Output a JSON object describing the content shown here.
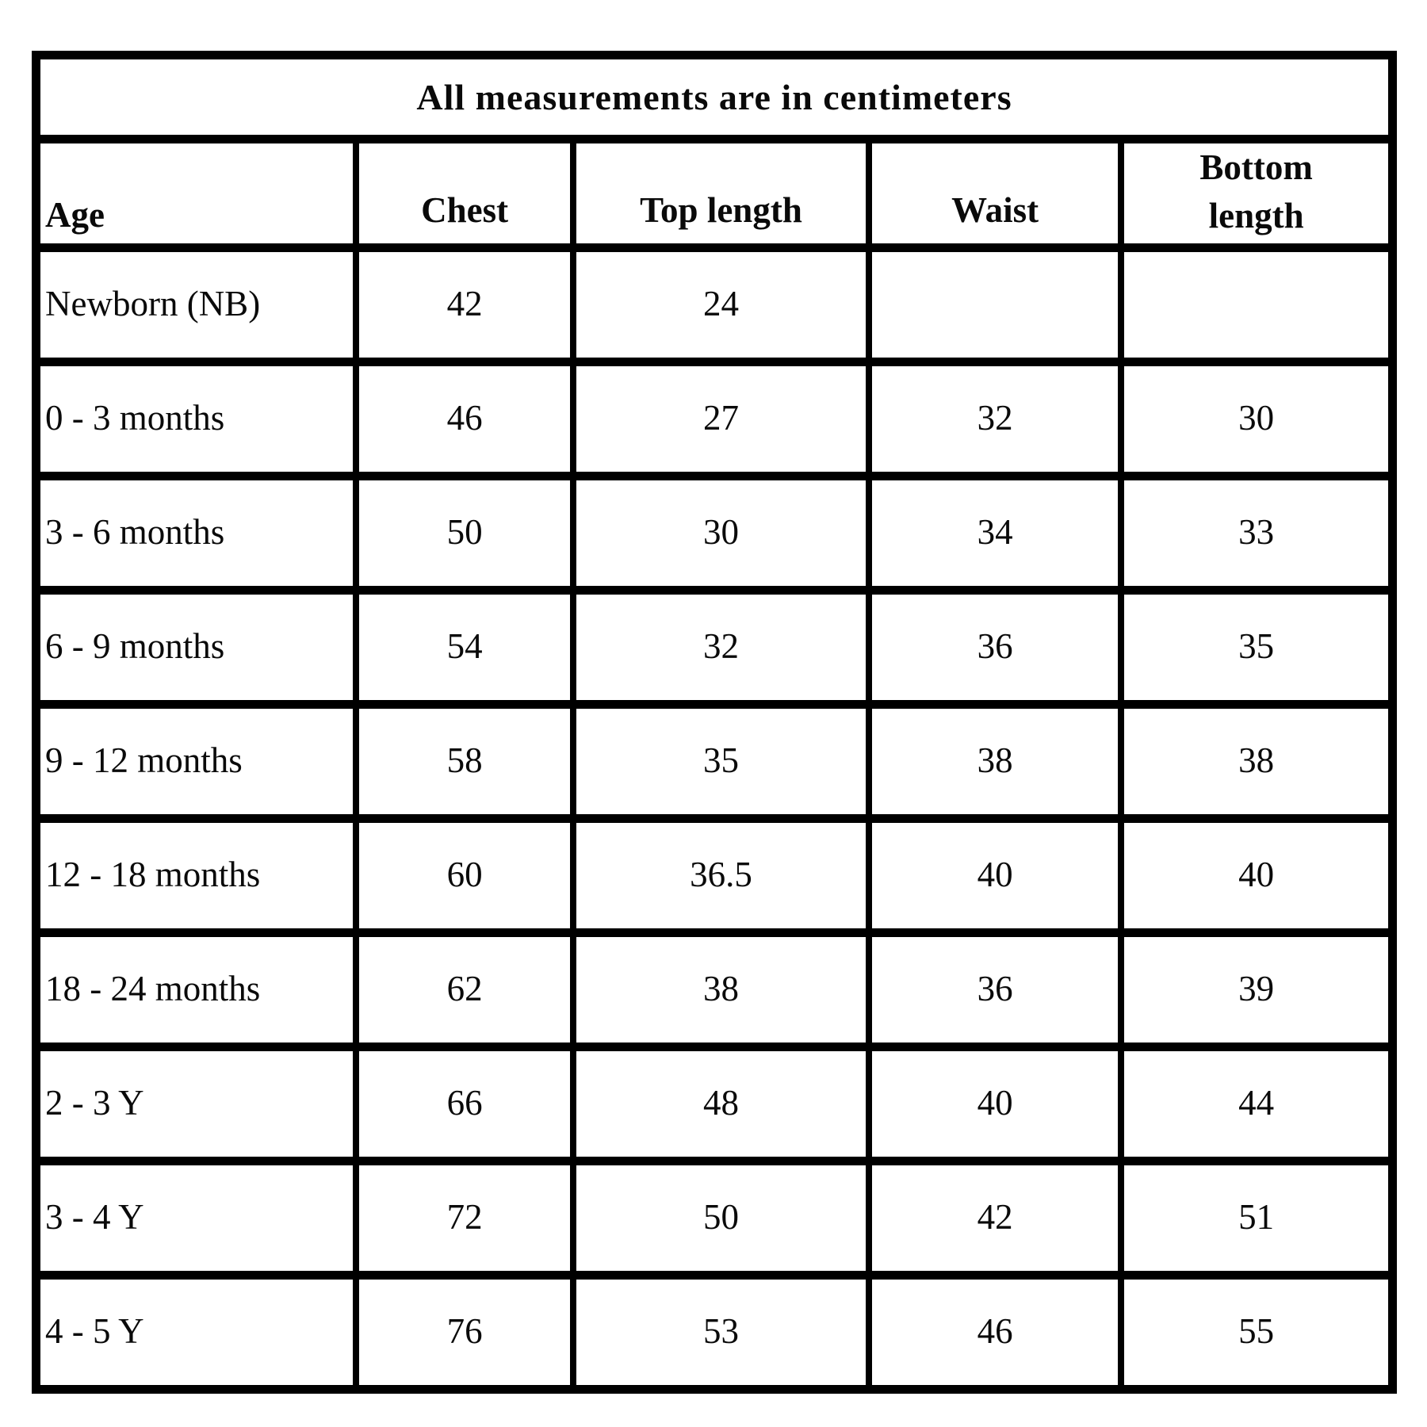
{
  "chart_data": {
    "type": "table",
    "title": "All measurements are in centimeters",
    "unit": "centimeters",
    "columns": [
      "Age",
      "Chest",
      "Top length",
      "Waist",
      "Bottom length"
    ],
    "rows": [
      [
        "Newborn (NB)",
        "42",
        "24",
        "",
        ""
      ],
      [
        "0 - 3 months",
        "46",
        "27",
        "32",
        "30"
      ],
      [
        "3 - 6 months",
        "50",
        "30",
        "34",
        "33"
      ],
      [
        "6 - 9 months",
        "54",
        "32",
        "36",
        "35"
      ],
      [
        "9 - 12 months",
        "58",
        "35",
        "38",
        "38"
      ],
      [
        "12 - 18 months",
        "60",
        "36.5",
        "40",
        "40"
      ],
      [
        "18 - 24 months",
        "62",
        "38",
        "36",
        "39"
      ],
      [
        "2 - 3 Y",
        "66",
        "48",
        "40",
        "44"
      ],
      [
        "3 - 4 Y",
        "72",
        "50",
        "42",
        "51"
      ],
      [
        "4 - 5 Y",
        "76",
        "53",
        "46",
        "55"
      ]
    ],
    "layout": {
      "grid": true,
      "border_color": "#000000",
      "background_color": "#ffffff",
      "text_color": "#0a0a0a"
    }
  }
}
